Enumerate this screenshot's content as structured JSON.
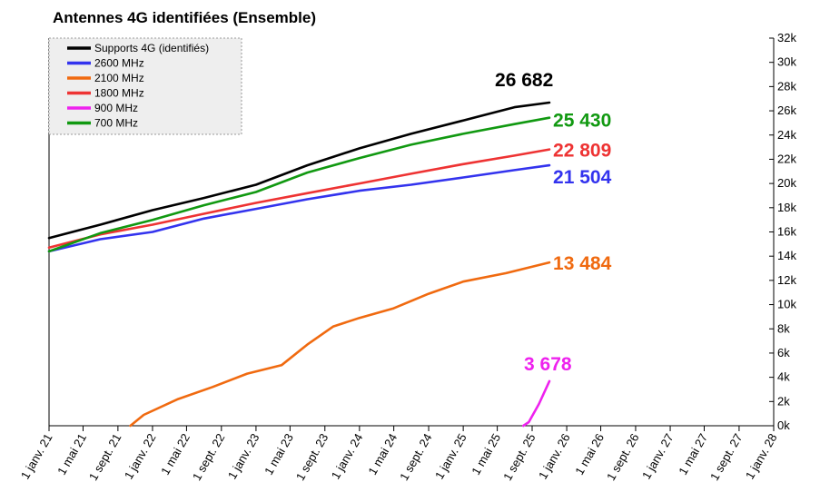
{
  "chart_data": {
    "type": "line",
    "title": "Antennes 4G identifiées (Ensemble)",
    "xlabel": "",
    "ylabel": "",
    "ylim": [
      0,
      32000
    ],
    "y_ticks": [
      0,
      2000,
      4000,
      6000,
      8000,
      10000,
      12000,
      14000,
      16000,
      18000,
      20000,
      22000,
      24000,
      26000,
      28000,
      30000,
      32000
    ],
    "y_tick_labels": [
      "0k",
      "2k",
      "4k",
      "6k",
      "8k",
      "10k",
      "12k",
      "14k",
      "16k",
      "18k",
      "20k",
      "22k",
      "24k",
      "26k",
      "28k",
      "30k",
      "32k"
    ],
    "x_range": [
      "2021-01-01",
      "2028-01-01"
    ],
    "x_ticks": [
      "2021-01-01",
      "2021-05-01",
      "2021-09-01",
      "2022-01-01",
      "2022-05-01",
      "2022-09-01",
      "2023-01-01",
      "2023-05-01",
      "2023-09-01",
      "2024-01-01",
      "2024-05-01",
      "2024-09-01",
      "2025-01-01",
      "2025-05-01",
      "2025-09-01",
      "2026-01-01",
      "2026-05-01",
      "2026-09-01",
      "2027-01-01",
      "2027-05-01",
      "2027-09-01",
      "2028-01-01"
    ],
    "x_tick_labels": [
      "1 janv. 21",
      "1 mai 21",
      "1 sept. 21",
      "1 janv. 22",
      "1 mai 22",
      "1 sept. 22",
      "1 janv. 23",
      "1 mai 23",
      "1 sept. 23",
      "1 janv. 24",
      "1 mai 24",
      "1 sept. 24",
      "1 janv. 25",
      "1 mai 25",
      "1 sept. 25",
      "1 janv. 26",
      "1 mai 26",
      "1 sept. 26",
      "1 janv. 27",
      "1 mai 27",
      "1 sept. 27",
      "1 janv. 28"
    ],
    "grid": false,
    "legend_position": "top-left",
    "series": [
      {
        "name": "Supports 4G (identifiés)",
        "color": "#000000",
        "end_label": "26 682",
        "points": [
          [
            "2021-01-01",
            15500
          ],
          [
            "2021-07-01",
            16600
          ],
          [
            "2022-01-01",
            17800
          ],
          [
            "2022-07-01",
            18800
          ],
          [
            "2023-01-01",
            19900
          ],
          [
            "2023-07-01",
            21500
          ],
          [
            "2024-01-01",
            22900
          ],
          [
            "2024-07-01",
            24100
          ],
          [
            "2025-01-01",
            25200
          ],
          [
            "2025-07-01",
            26300
          ],
          [
            "2025-11-01",
            26682
          ]
        ]
      },
      {
        "name": "2600 MHz",
        "color": "#3333ee",
        "end_label": "21 504",
        "points": [
          [
            "2021-01-01",
            14400
          ],
          [
            "2021-07-01",
            15400
          ],
          [
            "2022-01-01",
            16000
          ],
          [
            "2022-07-01",
            17100
          ],
          [
            "2023-01-01",
            17900
          ],
          [
            "2023-07-01",
            18700
          ],
          [
            "2024-01-01",
            19400
          ],
          [
            "2024-07-01",
            19900
          ],
          [
            "2025-01-01",
            20500
          ],
          [
            "2025-07-01",
            21100
          ],
          [
            "2025-11-01",
            21504
          ]
        ]
      },
      {
        "name": "2100 MHz",
        "color": "#f06a10",
        "end_label": "13 484",
        "points": [
          [
            "2021-10-15",
            0
          ],
          [
            "2021-12-01",
            900
          ],
          [
            "2022-04-01",
            2200
          ],
          [
            "2022-08-01",
            3200
          ],
          [
            "2022-12-01",
            4300
          ],
          [
            "2023-04-01",
            5000
          ],
          [
            "2023-07-01",
            6700
          ],
          [
            "2023-10-01",
            8200
          ],
          [
            "2024-01-01",
            8900
          ],
          [
            "2024-05-01",
            9700
          ],
          [
            "2024-09-01",
            10900
          ],
          [
            "2025-01-01",
            11900
          ],
          [
            "2025-06-01",
            12600
          ],
          [
            "2025-11-01",
            13484
          ]
        ]
      },
      {
        "name": "1800 MHz",
        "color": "#ee3333",
        "end_label": "22 809",
        "points": [
          [
            "2021-01-01",
            14700
          ],
          [
            "2021-07-01",
            15800
          ],
          [
            "2022-01-01",
            16600
          ],
          [
            "2022-07-01",
            17500
          ],
          [
            "2023-01-01",
            18400
          ],
          [
            "2023-07-01",
            19200
          ],
          [
            "2024-01-01",
            20000
          ],
          [
            "2024-07-01",
            20800
          ],
          [
            "2025-01-01",
            21600
          ],
          [
            "2025-07-01",
            22300
          ],
          [
            "2025-11-01",
            22809
          ]
        ]
      },
      {
        "name": "900 MHz",
        "color": "#ee22ee",
        "end_label": "3 678",
        "points": [
          [
            "2025-08-01",
            0
          ],
          [
            "2025-08-20",
            300
          ],
          [
            "2025-09-25",
            1800
          ],
          [
            "2025-11-01",
            3678
          ]
        ]
      },
      {
        "name": "700 MHz",
        "color": "#119911",
        "end_label": "25 430",
        "points": [
          [
            "2021-01-01",
            14400
          ],
          [
            "2021-07-01",
            15900
          ],
          [
            "2022-01-01",
            17000
          ],
          [
            "2022-07-01",
            18200
          ],
          [
            "2023-01-01",
            19300
          ],
          [
            "2023-07-01",
            20900
          ],
          [
            "2024-01-01",
            22100
          ],
          [
            "2024-07-01",
            23200
          ],
          [
            "2025-01-01",
            24100
          ],
          [
            "2025-07-01",
            24900
          ],
          [
            "2025-11-01",
            25430
          ]
        ]
      }
    ]
  }
}
